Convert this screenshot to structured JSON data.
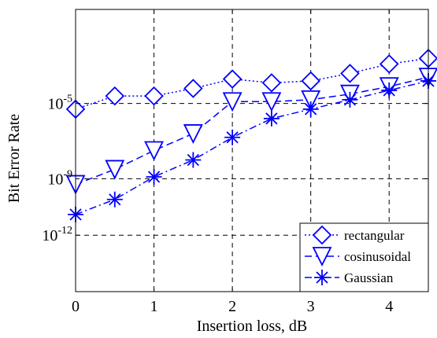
{
  "chart_data": {
    "type": "line",
    "xlabel": "Insertion loss, dB",
    "ylabel": "Bit Error Rate",
    "xlim": [
      0,
      4.5
    ],
    "ylim_log10": [
      -15,
      0
    ],
    "y_scale": "log",
    "grid": true,
    "legend_position": "bottom-right",
    "x_ticks": [
      "0",
      "1",
      "2",
      "3",
      "4"
    ],
    "y_ticks": [
      {
        "base": "10",
        "exp": "-5",
        "log10": -5
      },
      {
        "base": "10",
        "exp": "-9",
        "log10": -9
      },
      {
        "base": "10",
        "exp": "-12",
        "log10": -12
      }
    ],
    "x": [
      0,
      0.5,
      1,
      1.5,
      2,
      2.5,
      3,
      3.5,
      4,
      4.5
    ],
    "series": [
      {
        "name": "rectangular",
        "color": "#0000ff",
        "marker": "diamond",
        "dash": "dotted",
        "log10_values": [
          -5.3,
          -4.6,
          -4.6,
          -4.2,
          -3.7,
          -3.9,
          -3.8,
          -3.4,
          -2.9,
          -2.6
        ]
      },
      {
        "name": "cosinusoidal",
        "color": "#0000ff",
        "marker": "triangle-down",
        "dash": "dashed",
        "log10_values": [
          -9.3,
          -8.5,
          -7.5,
          -6.6,
          -4.9,
          -4.9,
          -4.8,
          -4.5,
          -4.1,
          -3.6
        ]
      },
      {
        "name": "Gaussian",
        "color": "#0000ff",
        "marker": "asterisk",
        "dash": "dashdot",
        "log10_values": [
          -10.9,
          -10.1,
          -8.9,
          -8.0,
          -6.8,
          -5.8,
          -5.3,
          -4.8,
          -4.3,
          -3.8
        ]
      }
    ]
  }
}
